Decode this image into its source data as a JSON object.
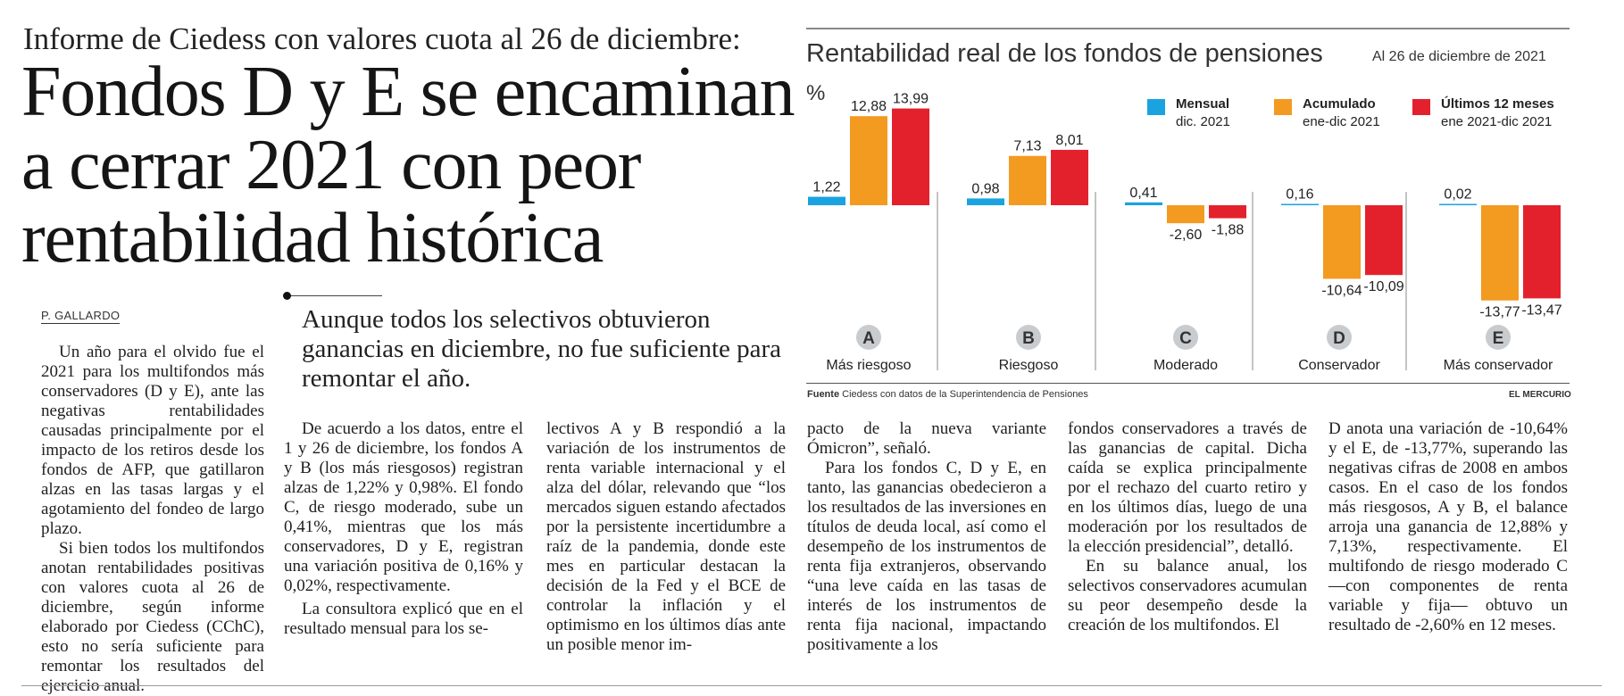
{
  "article": {
    "kicker": "Informe de Ciedess con valores cuota al 26 de diciembre:",
    "headline_lines": [
      "Fondos D y E se encaminan",
      "a cerrar 2021 con peor",
      "rentabilidad histórica"
    ],
    "byline": "P. GALLARDO",
    "deck": "Aunque todos los selectivos obtuvieron ganancias en diciembre, no fue suficiente para remontar el año.",
    "col1": [
      "Un año para el olvido fue el 2021 para los multifondos más conservadores (D y E), ante las negativas rentabilidades causadas principalmente por el impacto de los retiros desde los fondos de AFP, que gatillaron alzas en las tasas largas y el agotamiento del fondeo de largo plazo.",
      "Si bien todos los multifondos anotan rentabilidades positivas con valores cuota al 26 de diciembre, según informe elaborado por Ciedess (CChC), esto no sería suficiente para remontar los resultados del ejercicio anual."
    ],
    "col2": [
      "De acuerdo a los datos, entre el 1 y 26 de diciembre, los fondos A y B (los más riesgosos) registran alzas de 1,22% y 0,98%. El fondo C, de riesgo moderado, sube un 0,41%, mientras que los más conservadores, D y E, registran una variación positiva de 0,16% y 0,02%, respectivamente.",
      "La consultora explicó que en el resultado mensual para los se-"
    ],
    "col3": [
      "lectivos A y B respondió a la variación de los instrumentos de renta variable internacional y el alza del dólar, relevando que “los mercados siguen estando afectados por la persistente incertidumbre a raíz de la pandemia, donde este mes en particular destacan la decisión de la Fed y el BCE de controlar la inflación y el optimismo en los últimos días ante un posible menor im-"
    ],
    "col4": [
      "pacto de la nueva variante Ómicron”, señaló.",
      "Para los fondos C, D y E, en tanto, las ganancias obedecieron a los resultados de las inversiones en títulos de deuda local, así como el desempeño de los instrumentos de renta fija extranjeros, observando “una leve caída en las tasas de interés de los instrumentos de renta fija nacional, impactando positivamente a los"
    ],
    "col5": [
      "fondos conservadores a través de las ganancias de capital. Dicha caída se explica principalmente por el rechazo del cuarto retiro y en los últimos días, luego de una moderación por los resultados de la elección presidencial”, detalló.",
      "En su balance anual, los selectivos conservadores acumulan su peor desempeño desde la creación de los multifondos. El"
    ],
    "col6": [
      "D anota una variación de -10,64% y el E, de -13,77%, superando las negativas cifras de 2008 en ambos casos. En el caso de los fondos más riesgosos, A y B, el balance arroja una ganancia de 12,88% y 7,13%, respectivamente. El multifondo de riesgo moderado C —con componentes de renta variable y fija— obtuvo un resultado de -2,60% en 12 meses."
    ]
  },
  "chart_data": {
    "type": "bar",
    "title": "Rentabilidad real de los fondos de pensiones",
    "subtitle": "Al 26 de diciembre de 2021",
    "ylabel": "%",
    "ylim": [
      -14.5,
      14.5
    ],
    "categories": [
      "A",
      "B",
      "C",
      "D",
      "E"
    ],
    "category_names": [
      "Más riesgoso",
      "Riesgoso",
      "Moderado",
      "Conservador",
      "Más conservador"
    ],
    "series": [
      {
        "name": "Mensual",
        "period": "dic. 2021",
        "color": "#1aa3df",
        "values": [
          1.22,
          0.98,
          0.41,
          0.16,
          0.02
        ],
        "labels": [
          "1,22",
          "0,98",
          "0,41",
          "0,16",
          "0,02"
        ]
      },
      {
        "name": "Acumulado",
        "period": "ene-dic 2021",
        "color": "#f39a21",
        "values": [
          12.88,
          7.13,
          -2.6,
          -10.64,
          -13.77
        ],
        "labels": [
          "12,88",
          "7,13",
          "-2,60",
          "-10,64",
          "-13,77"
        ]
      },
      {
        "name": "Últimos 12 meses",
        "period": "ene 2021-dic 2021",
        "color": "#e3212d",
        "values": [
          13.99,
          8.01,
          -1.88,
          -10.09,
          -13.47
        ],
        "labels": [
          "13,99",
          "8,01",
          "-1,88",
          "-10,09",
          "-13,47"
        ]
      }
    ],
    "legend_position": "top-right",
    "source_label": "Fuente",
    "source": "Ciedess con datos de la Superintendencia de Pensiones",
    "brand": "EL MERCURIO"
  }
}
